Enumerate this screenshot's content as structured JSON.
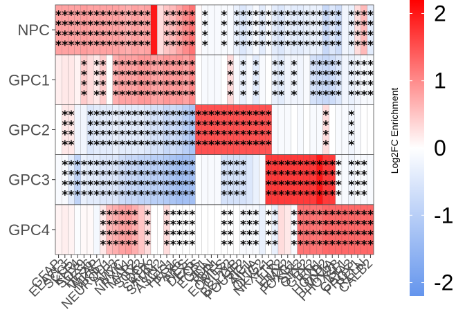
{
  "chart_data": {
    "type": "heatmap",
    "rows": [
      "NPC",
      "GPC1",
      "GPC2",
      "GPC3",
      "GPC4"
    ],
    "colorbar": {
      "title": "Log2FC Enrichment",
      "ticks": [
        "2",
        "1",
        "0",
        "-1",
        "-2"
      ],
      "tick_values": [
        2,
        1,
        0,
        -1,
        -2
      ],
      "range": [
        -2.2,
        2.2
      ],
      "colors": {
        "low": "#6495ED",
        "mid": "#FFFFFF",
        "high": "#FF0000"
      }
    },
    "columns": [
      {
        "label": "GFAP",
        "values": [
          0.8,
          0.15,
          0.0,
          -0.1,
          0.1
        ],
        "sig": [
          1,
          0,
          0,
          0,
          0
        ]
      },
      {
        "label": "ELAVL3",
        "values": [
          0.8,
          0.2,
          0.2,
          -0.1,
          0.15
        ],
        "sig": [
          1,
          0,
          1,
          1,
          0
        ]
      },
      {
        "label": "SCG5",
        "values": [
          0.8,
          0.2,
          0.2,
          -0.4,
          0.1
        ],
        "sig": [
          1,
          0,
          1,
          1,
          0
        ]
      },
      {
        "label": "KLF4",
        "values": [
          0.8,
          0.1,
          -0.2,
          -0.9,
          -0.05
        ],
        "sig": [
          1,
          0,
          0,
          1,
          0
        ]
      },
      {
        "label": "SOX9",
        "values": [
          0.85,
          0.45,
          -0.2,
          -0.3,
          0.05
        ],
        "sig": [
          1,
          1,
          0,
          1,
          0
        ]
      },
      {
        "label": "HES6",
        "values": [
          0.8,
          0.3,
          -0.5,
          -0.4,
          0.05
        ],
        "sig": [
          1,
          0,
          1,
          1,
          0
        ]
      },
      {
        "label": "WTAP",
        "values": [
          0.8,
          0.2,
          -0.4,
          -0.4,
          -0.15
        ],
        "sig": [
          1,
          1,
          1,
          1,
          0
        ]
      },
      {
        "label": "MKI67",
        "values": [
          0.8,
          0.45,
          -0.4,
          -0.5,
          0.2
        ],
        "sig": [
          1,
          1,
          1,
          1,
          1
        ]
      },
      {
        "label": "NEUROD1",
        "values": [
          0.8,
          0.0,
          -0.4,
          -0.5,
          0.6
        ],
        "sig": [
          1,
          0,
          1,
          1,
          1
        ]
      },
      {
        "label": "ATF3",
        "values": [
          0.8,
          0.7,
          -0.3,
          -0.5,
          0.7
        ],
        "sig": [
          1,
          1,
          1,
          1,
          1
        ]
      },
      {
        "label": "MYC",
        "values": [
          0.75,
          0.8,
          -0.4,
          -0.7,
          0.8
        ],
        "sig": [
          1,
          1,
          1,
          1,
          1
        ]
      },
      {
        "label": "NRXN1",
        "values": [
          0.7,
          0.8,
          -0.4,
          -0.8,
          0.85
        ],
        "sig": [
          1,
          1,
          1,
          1,
          1
        ]
      },
      {
        "label": "MAP2",
        "values": [
          0.8,
          0.8,
          -0.4,
          -0.8,
          0.7
        ],
        "sig": [
          1,
          1,
          1,
          1,
          1
        ]
      },
      {
        "label": "SOX2",
        "values": [
          0.75,
          0.9,
          -0.4,
          -0.9,
          0.5
        ],
        "sig": [
          1,
          1,
          1,
          1,
          0
        ]
      },
      {
        "label": "DCX",
        "values": [
          0.8,
          0.9,
          -0.5,
          -0.9,
          0.3
        ],
        "sig": [
          1,
          1,
          1,
          1,
          1
        ]
      },
      {
        "label": "SATB2",
        "values": [
          2.0,
          0.8,
          -0.6,
          -1.0,
          0.0
        ],
        "sig": [
          0,
          1,
          1,
          1,
          0
        ]
      },
      {
        "label": "STMN2",
        "values": [
          0.3,
          0.8,
          -0.6,
          -1.0,
          0.0
        ],
        "sig": [
          0,
          1,
          1,
          1,
          0
        ]
      },
      {
        "label": "ASCL1",
        "values": [
          0.5,
          0.9,
          -0.8,
          -1.1,
          0.3
        ],
        "sig": [
          1,
          1,
          1,
          1,
          1
        ]
      },
      {
        "label": "HES1",
        "values": [
          0.6,
          0.85,
          -0.7,
          -1.2,
          0.0
        ],
        "sig": [
          1,
          1,
          1,
          1,
          1
        ]
      },
      {
        "label": "PAX6",
        "values": [
          0.8,
          0.9,
          -0.8,
          -1.3,
          0.0
        ],
        "sig": [
          1,
          1,
          1,
          1,
          1
        ]
      },
      {
        "label": "NES",
        "values": [
          1.0,
          0.8,
          -1.0,
          -1.3,
          0.0
        ],
        "sig": [
          1,
          1,
          1,
          1,
          1
        ]
      },
      {
        "label": "DLX5",
        "values": [
          1.2,
          1.0,
          -1.2,
          -1.3,
          0.0
        ],
        "sig": [
          1,
          1,
          1,
          1,
          1
        ]
      },
      {
        "label": "FOS",
        "values": [
          0.05,
          0.0,
          1.5,
          -0.05,
          0.0
        ],
        "sig": [
          0,
          0,
          1,
          0,
          0
        ]
      },
      {
        "label": "EGR1",
        "values": [
          -0.1,
          -0.1,
          1.5,
          -0.1,
          0.0
        ],
        "sig": [
          1,
          0,
          1,
          0,
          0
        ]
      },
      {
        "label": "JUN",
        "values": [
          -0.1,
          -0.1,
          1.5,
          -0.1,
          0.0
        ],
        "sig": [
          0,
          0,
          1,
          0,
          0
        ]
      },
      {
        "label": "TBR1",
        "values": [
          -0.1,
          -0.1,
          1.5,
          -0.1,
          0.0
        ],
        "sig": [
          0,
          0,
          1,
          0,
          0
        ]
      },
      {
        "label": "EOMES",
        "values": [
          -0.1,
          0.0,
          1.5,
          -0.6,
          0.0
        ],
        "sig": [
          1,
          0,
          1,
          1,
          1
        ]
      },
      {
        "label": "CUX2",
        "values": [
          -0.1,
          0.3,
          1.5,
          -0.6,
          0.0
        ],
        "sig": [
          0,
          1,
          1,
          1,
          1
        ]
      },
      {
        "label": "BCL11B",
        "values": [
          -0.3,
          -0.1,
          1.5,
          -0.6,
          0.0
        ],
        "sig": [
          1,
          0,
          1,
          1,
          0
        ]
      },
      {
        "label": "POU3F2",
        "values": [
          -0.5,
          -0.3,
          1.5,
          -0.6,
          -0.1
        ],
        "sig": [
          1,
          1,
          1,
          1,
          1
        ]
      },
      {
        "label": "ZIC1",
        "values": [
          -0.3,
          -0.1,
          1.5,
          -0.5,
          -0.1
        ],
        "sig": [
          1,
          0,
          1,
          0,
          1
        ]
      },
      {
        "label": "NFIA",
        "values": [
          -0.1,
          -0.4,
          1.5,
          -0.3,
          -0.1
        ],
        "sig": [
          1,
          1,
          1,
          0,
          1
        ]
      },
      {
        "label": "OLIG2",
        "values": [
          -0.4,
          -0.1,
          1.5,
          -0.1,
          -0.3
        ],
        "sig": [
          1,
          0,
          1,
          0,
          0
        ]
      },
      {
        "label": "NKX2-1",
        "values": [
          -0.1,
          0.0,
          1.5,
          1.7,
          0.0
        ],
        "sig": [
          1,
          0,
          1,
          1,
          1
        ]
      },
      {
        "label": "TTR",
        "values": [
          -0.4,
          -0.3,
          -0.1,
          1.7,
          -0.3
        ],
        "sig": [
          1,
          1,
          0,
          1,
          1
        ]
      },
      {
        "label": "LHX2",
        "values": [
          -0.5,
          -0.4,
          -0.1,
          1.7,
          0.3
        ],
        "sig": [
          1,
          1,
          0,
          1,
          0
        ]
      },
      {
        "label": "EMX2",
        "values": [
          -0.3,
          -0.2,
          -0.1,
          1.7,
          0.2
        ],
        "sig": [
          1,
          0,
          0,
          1,
          0
        ]
      },
      {
        "label": "FOXG1",
        "values": [
          -0.4,
          -0.2,
          0.0,
          1.7,
          -0.1
        ],
        "sig": [
          1,
          1,
          0,
          1,
          1
        ]
      },
      {
        "label": "SIX3",
        "values": [
          -0.4,
          -0.2,
          -0.1,
          1.7,
          1.2
        ],
        "sig": [
          1,
          0,
          0,
          1,
          1
        ]
      },
      {
        "label": "OTX2",
        "values": [
          -0.3,
          -0.1,
          0.0,
          1.7,
          1.2
        ],
        "sig": [
          1,
          0,
          0,
          1,
          1
        ]
      },
      {
        "label": "GBX2",
        "values": [
          -0.3,
          -0.6,
          -0.1,
          1.7,
          1.2
        ],
        "sig": [
          1,
          1,
          0,
          1,
          1
        ]
      },
      {
        "label": "EN1",
        "values": [
          -0.3,
          -0.7,
          -0.1,
          2.0,
          1.2
        ],
        "sig": [
          1,
          1,
          0,
          1,
          1
        ]
      },
      {
        "label": "HOXB2",
        "values": [
          -0.8,
          -0.8,
          0.3,
          1.7,
          1.3
        ],
        "sig": [
          1,
          1,
          1,
          1,
          1
        ]
      },
      {
        "label": "LMX1A",
        "values": [
          -0.5,
          -0.7,
          0.0,
          1.7,
          1.3
        ],
        "sig": [
          1,
          1,
          0,
          1,
          1
        ]
      },
      {
        "label": "PHOX2B",
        "values": [
          -0.7,
          -0.5,
          -0.1,
          -0.1,
          1.3
        ],
        "sig": [
          1,
          1,
          0,
          1,
          1
        ]
      },
      {
        "label": "ISL1",
        "values": [
          -0.2,
          -0.2,
          -0.1,
          -0.1,
          1.3
        ],
        "sig": [
          0,
          0,
          0,
          0,
          1
        ]
      },
      {
        "label": "GATA3",
        "values": [
          -0.3,
          -0.3,
          -0.2,
          -0.2,
          1.3
        ],
        "sig": [
          1,
          1,
          1,
          1,
          1
        ]
      },
      {
        "label": "PROX1",
        "values": [
          0.3,
          -0.2,
          -0.1,
          -0.1,
          1.3
        ],
        "sig": [
          1,
          1,
          0,
          1,
          1
        ]
      },
      {
        "label": "RELN",
        "values": [
          0.6,
          -0.1,
          0.0,
          -0.1,
          1.3
        ],
        "sig": [
          1,
          1,
          0,
          1,
          1
        ]
      },
      {
        "label": "CALB2",
        "values": [
          -0.4,
          -0.1,
          0.0,
          -0.1,
          1.3
        ],
        "sig": [
          1,
          1,
          0,
          0,
          1
        ]
      }
    ]
  }
}
